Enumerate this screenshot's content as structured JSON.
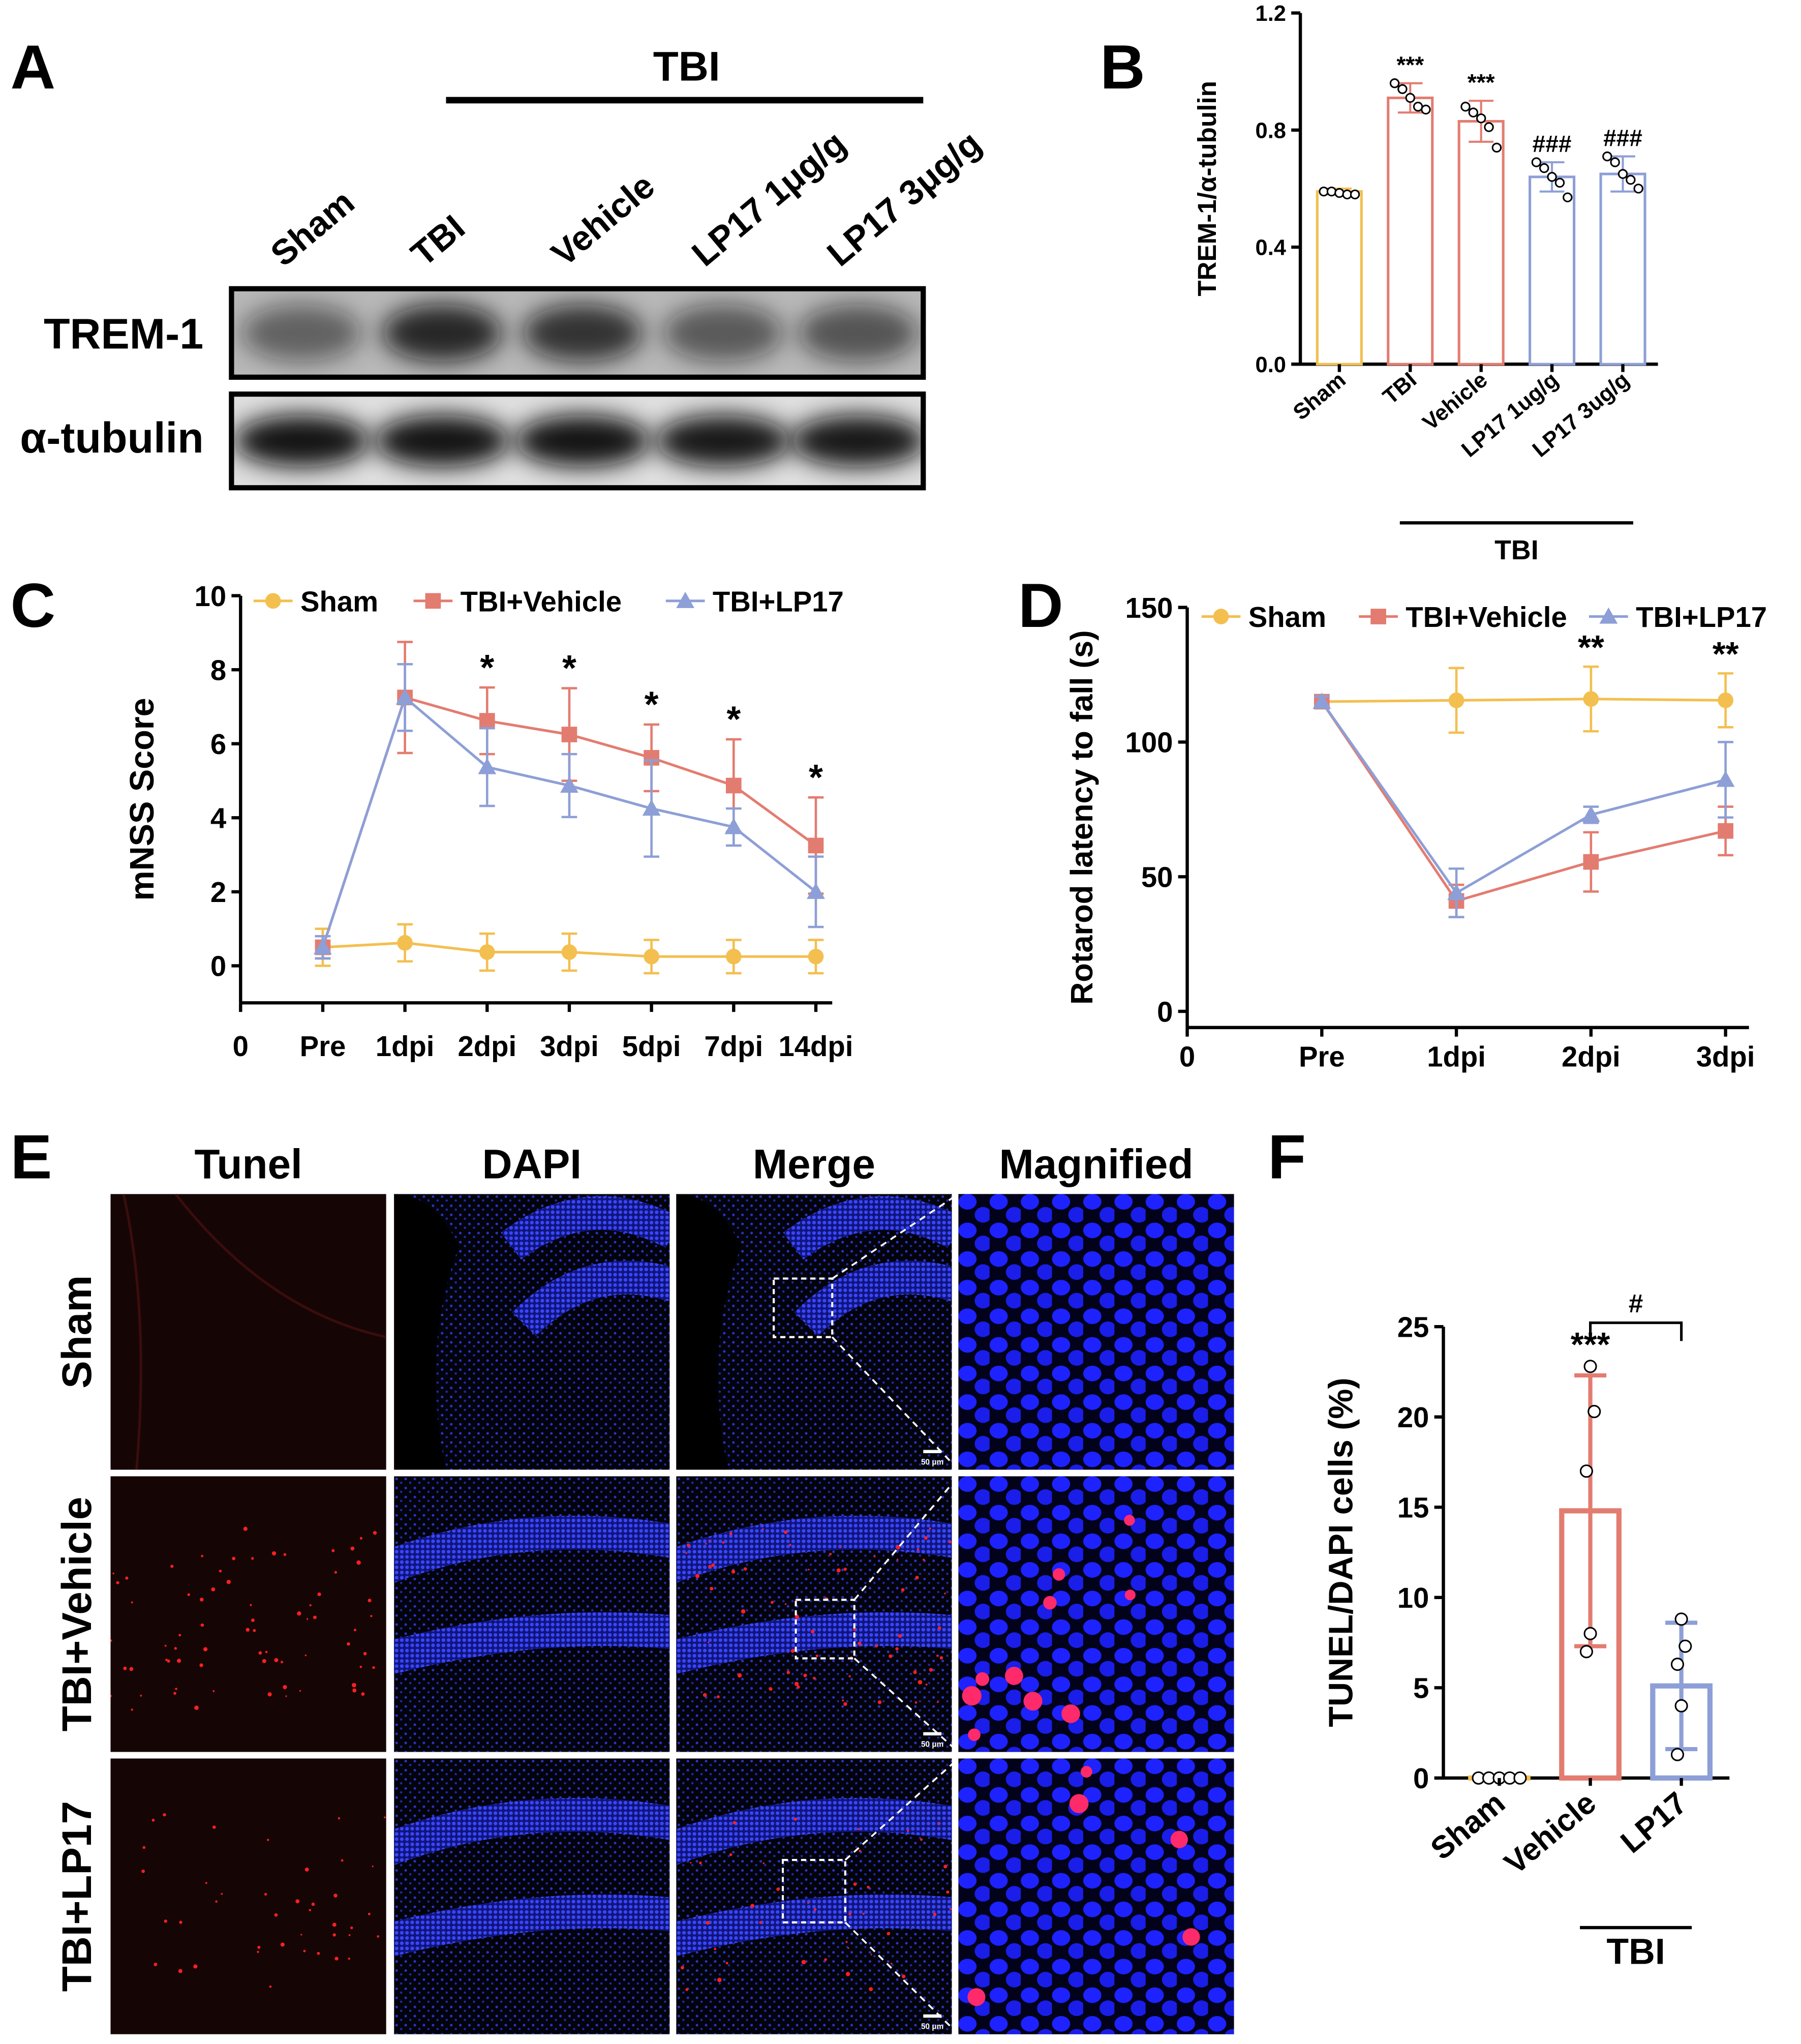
{
  "panel_labels": [
    "A",
    "B",
    "C",
    "D",
    "E",
    "F"
  ],
  "blot": {
    "group_label": "TBI",
    "lanes": [
      "Sham",
      "TBI",
      "Vehicle",
      "LP17 1μg/g",
      "LP17 3μg/g"
    ],
    "rows": [
      "TREM-1",
      "α-tubulin"
    ]
  },
  "micrographs": {
    "columns": [
      "Tunel",
      "DAPI",
      "Merge",
      "Magnified"
    ],
    "rows": [
      "Sham",
      "TBI+Vehicle",
      "TBI+LP17"
    ],
    "scale_bar": "50 μm"
  },
  "chart_data": [
    {
      "type": "bar",
      "ylabel": "TREM-1/α-tubulin",
      "categories": [
        "Sham",
        "TBI",
        "Vehicle",
        "LP17 1ug/g",
        "LP17 3ug/g"
      ],
      "values": [
        0.59,
        0.91,
        0.83,
        0.64,
        0.65
      ],
      "errors": [
        0.01,
        0.05,
        0.07,
        0.05,
        0.06
      ],
      "points": [
        [
          0.59,
          0.59,
          0.585,
          0.58,
          0.58
        ],
        [
          0.96,
          0.94,
          0.91,
          0.88,
          0.87
        ],
        [
          0.88,
          0.86,
          0.84,
          0.81,
          0.74
        ],
        [
          0.69,
          0.67,
          0.64,
          0.62,
          0.57
        ],
        [
          0.71,
          0.69,
          0.65,
          0.63,
          0.6
        ]
      ],
      "colors": [
        "#f3bf4f",
        "#e37c70",
        "#e37c70",
        "#8d9fd6",
        "#8d9fd6"
      ],
      "significance": [
        null,
        "***",
        "***",
        "###",
        "###"
      ],
      "group_label": "TBI",
      "ylim": [
        0,
        1.2
      ],
      "yticks": [
        {
          "value": 0,
          "label": "0.0"
        },
        {
          "value": 0.4,
          "label": "0.4"
        },
        {
          "value": 0.8,
          "label": "0.8"
        },
        {
          "value": 1.2,
          "label": "1.2"
        }
      ]
    },
    {
      "type": "line",
      "ylabel": "mNSS Score",
      "categories": [
        "0",
        "Pre",
        "1dpi",
        "2dpi",
        "3dpi",
        "5dpi",
        "7dpi",
        "14dpi"
      ],
      "series": [
        {
          "name": "Sham",
          "color": "#f3bf4f",
          "marker": "circle",
          "values": [
            null,
            0.5,
            0.62,
            0.37,
            0.37,
            0.25,
            0.25,
            0.25
          ],
          "errors": [
            null,
            0.5,
            0.5,
            0.5,
            0.5,
            0.45,
            0.45,
            0.45
          ]
        },
        {
          "name": "TBI+Vehicle",
          "color": "#e37c70",
          "marker": "square",
          "values": [
            null,
            0.5,
            7.25,
            6.62,
            6.25,
            5.62,
            4.87,
            3.25
          ],
          "errors": [
            null,
            0.3,
            1.5,
            0.9,
            1.25,
            0.9,
            1.25,
            1.3
          ]
        },
        {
          "name": "TBI+LP17",
          "color": "#8d9fd6",
          "marker": "triangle",
          "values": [
            null,
            0.5,
            7.25,
            5.37,
            4.87,
            4.25,
            3.75,
            2.0
          ],
          "errors": [
            null,
            0.3,
            0.9,
            1.05,
            0.85,
            1.3,
            0.5,
            0.95
          ]
        }
      ],
      "significance": [
        null,
        null,
        null,
        "*",
        "*",
        "*",
        "*",
        "*"
      ],
      "legend": "top",
      "ylim": [
        -1,
        10
      ],
      "yticks": [
        0,
        2,
        4,
        6,
        8,
        10
      ]
    },
    {
      "type": "line",
      "ylabel": "Rotarod latency to fall (s)",
      "categories": [
        "0",
        "Pre",
        "1dpi",
        "2dpi",
        "3dpi"
      ],
      "series": [
        {
          "name": "Sham",
          "color": "#f3bf4f",
          "marker": "circle",
          "values": [
            null,
            115,
            115.5,
            116,
            115.5
          ],
          "errors": [
            null,
            2,
            12,
            12,
            10
          ]
        },
        {
          "name": "TBI+Vehicle",
          "color": "#e37c70",
          "marker": "square",
          "values": [
            null,
            115,
            41,
            55.5,
            67
          ],
          "errors": [
            null,
            2,
            6,
            11,
            9
          ]
        },
        {
          "name": "TBI+LP17",
          "color": "#8d9fd6",
          "marker": "triangle",
          "values": [
            null,
            115,
            44,
            73,
            86
          ],
          "errors": [
            null,
            2,
            9,
            3,
            14
          ]
        }
      ],
      "significance": [
        null,
        null,
        null,
        "**",
        "**"
      ],
      "legend": "top",
      "ylim": [
        -6,
        150
      ],
      "yticks": [
        0,
        50,
        100,
        150
      ]
    },
    {
      "type": "bar",
      "ylabel": "TUNEL/DAPI cells (%)",
      "categories": [
        "Sham",
        "Vehicle",
        "LP17"
      ],
      "values": [
        0,
        14.8,
        5.1
      ],
      "errors": [
        0,
        7.5,
        3.5
      ],
      "points": [
        [
          0,
          0,
          0,
          0,
          0
        ],
        [
          22.8,
          20.3,
          17.0,
          8.0,
          7.0
        ],
        [
          8.8,
          7.3,
          6.3,
          4.0,
          1.3
        ]
      ],
      "colors": [
        "#f3bf4f",
        "#e37c70",
        "#8d9fd6"
      ],
      "significance": [
        null,
        "***",
        null
      ],
      "bracket_label": "#",
      "group_label": "TBI",
      "ylim": [
        0,
        25
      ],
      "yticks": [
        0,
        5,
        10,
        15,
        20,
        25
      ]
    }
  ]
}
